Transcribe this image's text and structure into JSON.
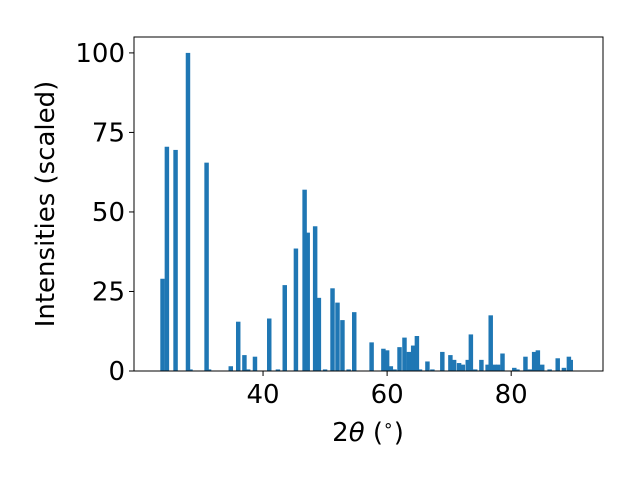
{
  "chart_data": {
    "type": "bar",
    "xlabel_parts": [
      "2",
      "θ",
      " (",
      "∘",
      ")"
    ],
    "ylabel": "Intensities (scaled)",
    "xlim": [
      19.2,
      94.8
    ],
    "ylim": [
      0,
      105
    ],
    "xticks": [
      40,
      60,
      80
    ],
    "yticks": [
      0,
      25,
      50,
      75,
      100
    ],
    "grid": false,
    "bar_width": 0.72,
    "bar_color": "#1f77b4",
    "x": [
      23.8,
      24.5,
      25.9,
      27.9,
      28.3,
      30.9,
      31.3,
      34.8,
      36.0,
      37.0,
      37.6,
      38.7,
      41.0,
      42.4,
      43.5,
      45.3,
      46.7,
      47.2,
      48.4,
      49.0,
      50.0,
      51.2,
      52.0,
      52.8,
      53.8,
      54.7,
      57.5,
      59.4,
      60.0,
      60.6,
      61.2,
      62.0,
      62.8,
      63.5,
      64.2,
      64.8,
      65.3,
      66.5,
      67.3,
      68.9,
      70.2,
      70.8,
      71.6,
      72.2,
      73.0,
      73.5,
      74.2,
      75.2,
      76.2,
      76.7,
      77.3,
      77.9,
      78.6,
      80.5,
      81.0,
      82.3,
      83.0,
      83.7,
      84.3,
      85.0,
      86.2,
      87.5,
      88.5,
      89.3,
      89.6
    ],
    "values": [
      29,
      70.5,
      69.5,
      100,
      0.5,
      65.5,
      0.5,
      1.5,
      15.5,
      5,
      0.5,
      4.5,
      16.5,
      0.5,
      27,
      38.5,
      57,
      43.5,
      45.5,
      23,
      0.5,
      26,
      21.5,
      16,
      0.5,
      18.5,
      9,
      7,
      6.5,
      1.5,
      0.5,
      7.5,
      10.5,
      6,
      8,
      11,
      0.5,
      3,
      0.5,
      6,
      5,
      3.5,
      2.5,
      2,
      3.5,
      11.5,
      0.5,
      3.5,
      2,
      17.5,
      2,
      2,
      5.5,
      1,
      0.5,
      4.5,
      0.5,
      6,
      6.5,
      2,
      0.5,
      4,
      1,
      4.5,
      3.5
    ]
  }
}
